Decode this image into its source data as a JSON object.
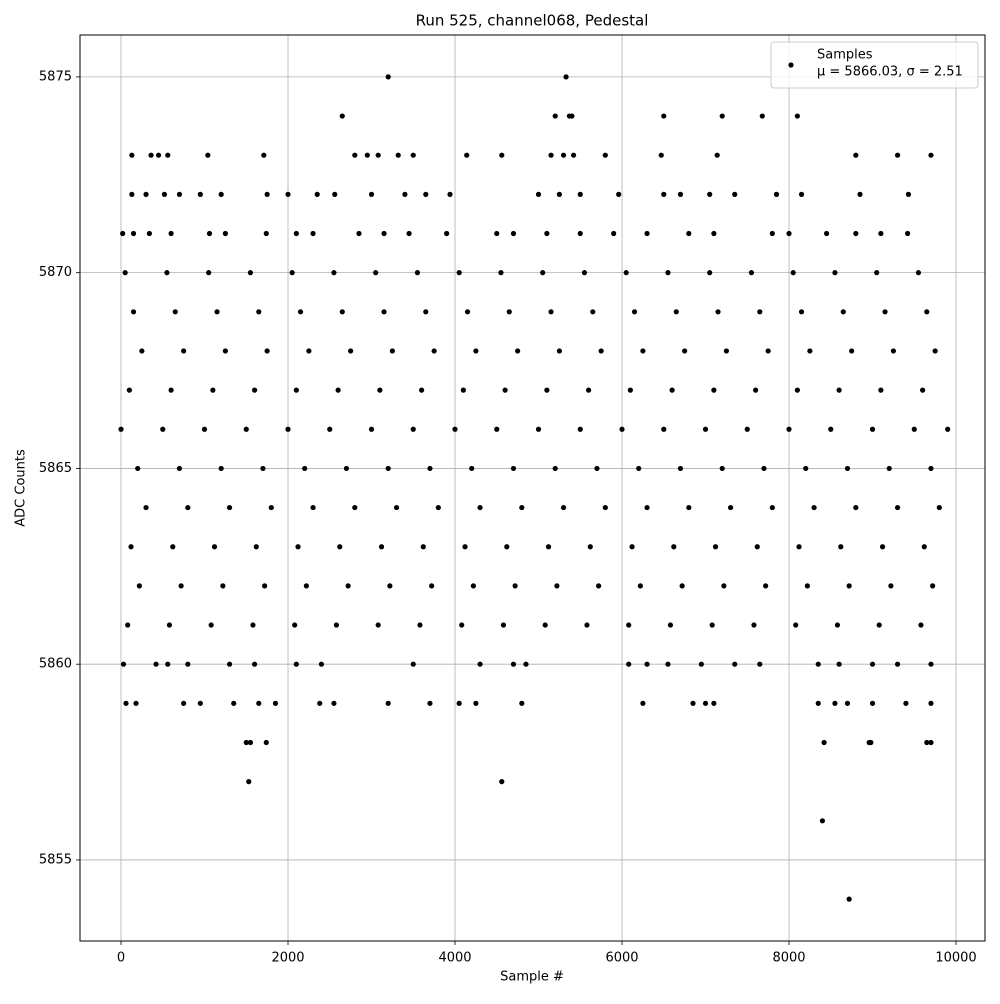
{
  "chart_data": {
    "type": "scatter",
    "title": "Run 525, channel068, Pedestal",
    "x_label": "Sample #",
    "y_label": "ADC Counts",
    "xlim": [
      -491,
      10347
    ],
    "ylim": [
      5852.93,
      5876.07
    ],
    "xticks": [
      0,
      2000,
      4000,
      6000,
      8000,
      10000
    ],
    "yticks": [
      5855,
      5860,
      5865,
      5870,
      5875
    ],
    "grid": true,
    "legend": "upper right",
    "legend_note": "μ = 5866.03, σ = 2.51",
    "series": [
      {
        "name": "Samples",
        "color": "#000000",
        "x": [
          3200,
          5330,
          2650,
          5200,
          5370,
          5400,
          6500,
          7200,
          7680,
          8100,
          130,
          360,
          450,
          560,
          1040,
          1710,
          2800,
          2950,
          3080,
          3320,
          3500,
          4140,
          4560,
          5150,
          5300,
          5420,
          5800,
          6470,
          7140,
          8800,
          9300,
          9700,
          130,
          300,
          520,
          700,
          950,
          1200,
          1750,
          2000,
          2350,
          2560,
          3000,
          3400,
          3650,
          3940,
          5000,
          5250,
          5500,
          5960,
          6500,
          6700,
          7050,
          7350,
          7850,
          8150,
          8850,
          9430,
          20,
          150,
          340,
          600,
          1060,
          1250,
          1740,
          2100,
          2300,
          2850,
          3150,
          3450,
          3900,
          4500,
          4700,
          5100,
          5500,
          5900,
          6300,
          6800,
          7100,
          7800,
          8000,
          8450,
          8800,
          9100,
          9420,
          50,
          550,
          1050,
          1550,
          2050,
          2550,
          3050,
          3550,
          4050,
          4550,
          5050,
          5550,
          6050,
          6550,
          7050,
          7550,
          8050,
          8550,
          9050,
          9550,
          150,
          650,
          1150,
          1650,
          2150,
          2650,
          3150,
          3650,
          4150,
          4650,
          5150,
          5650,
          6150,
          6650,
          7150,
          7650,
          8150,
          8650,
          9150,
          9650,
          250,
          750,
          1250,
          1750,
          2250,
          2750,
          3250,
          3750,
          4250,
          4750,
          5250,
          5750,
          6250,
          6750,
          7250,
          7750,
          8250,
          8750,
          9250,
          9750,
          100,
          600,
          1100,
          1600,
          2100,
          2600,
          3100,
          3600,
          4100,
          4600,
          5100,
          5600,
          6100,
          6600,
          7100,
          7600,
          8100,
          8600,
          9100,
          9600,
          0,
          500,
          1000,
          1500,
          2000,
          2500,
          3000,
          3500,
          4000,
          4500,
          5000,
          5500,
          6000,
          6500,
          7000,
          7500,
          8000,
          8500,
          9000,
          9500,
          9900,
          200,
          700,
          1200,
          1700,
          2200,
          2700,
          3200,
          3700,
          4200,
          4700,
          5200,
          5700,
          6200,
          6700,
          7200,
          7700,
          8200,
          8700,
          9200,
          9700,
          300,
          800,
          1300,
          1800,
          2300,
          2800,
          3300,
          3800,
          4300,
          4800,
          5300,
          5800,
          6300,
          6800,
          7300,
          7800,
          8300,
          8800,
          9300,
          9800,
          120,
          620,
          1120,
          1620,
          2120,
          2620,
          3120,
          3620,
          4120,
          4620,
          5120,
          5620,
          6120,
          6620,
          7120,
          7620,
          8120,
          8620,
          9120,
          9620,
          220,
          720,
          1220,
          1720,
          2220,
          2720,
          3220,
          3720,
          4220,
          4720,
          5220,
          5720,
          6220,
          6720,
          7220,
          7720,
          8220,
          8720,
          9220,
          9720,
          80,
          580,
          1080,
          1580,
          2080,
          2580,
          3080,
          3580,
          4080,
          4580,
          5080,
          5580,
          6080,
          6580,
          7080,
          7580,
          8080,
          8580,
          9080,
          9580,
          30,
          420,
          560,
          800,
          1300,
          1600,
          2100,
          2400,
          3500,
          4300,
          4700,
          4850,
          6080,
          6300,
          6550,
          6950,
          7350,
          7650,
          8350,
          8600,
          9000,
          9300,
          9700,
          60,
          180,
          750,
          950,
          1350,
          1650,
          1850,
          2380,
          2550,
          3200,
          3700,
          4050,
          4250,
          4800,
          6250,
          6850,
          7000,
          7100,
          8350,
          8550,
          8700,
          9000,
          9400,
          9700,
          1500,
          1550,
          1740,
          8420,
          8960,
          8980,
          9650,
          9700,
          1530,
          4560,
          8400,
          8720
        ],
        "values": [
          5875,
          5875,
          5874,
          5874,
          5874,
          5874,
          5874,
          5874,
          5874,
          5874,
          5873,
          5873,
          5873,
          5873,
          5873,
          5873,
          5873,
          5873,
          5873,
          5873,
          5873,
          5873,
          5873,
          5873,
          5873,
          5873,
          5873,
          5873,
          5873,
          5873,
          5873,
          5873,
          5872,
          5872,
          5872,
          5872,
          5872,
          5872,
          5872,
          5872,
          5872,
          5872,
          5872,
          5872,
          5872,
          5872,
          5872,
          5872,
          5872,
          5872,
          5872,
          5872,
          5872,
          5872,
          5872,
          5872,
          5872,
          5872,
          5871,
          5871,
          5871,
          5871,
          5871,
          5871,
          5871,
          5871,
          5871,
          5871,
          5871,
          5871,
          5871,
          5871,
          5871,
          5871,
          5871,
          5871,
          5871,
          5871,
          5871,
          5871,
          5871,
          5871,
          5871,
          5871,
          5871,
          5870,
          5870,
          5870,
          5870,
          5870,
          5870,
          5870,
          5870,
          5870,
          5870,
          5870,
          5870,
          5870,
          5870,
          5870,
          5870,
          5870,
          5870,
          5870,
          5870,
          5869,
          5869,
          5869,
          5869,
          5869,
          5869,
          5869,
          5869,
          5869,
          5869,
          5869,
          5869,
          5869,
          5869,
          5869,
          5869,
          5869,
          5869,
          5869,
          5869,
          5868,
          5868,
          5868,
          5868,
          5868,
          5868,
          5868,
          5868,
          5868,
          5868,
          5868,
          5868,
          5868,
          5868,
          5868,
          5868,
          5868,
          5868,
          5868,
          5868,
          5867,
          5867,
          5867,
          5867,
          5867,
          5867,
          5867,
          5867,
          5867,
          5867,
          5867,
          5867,
          5867,
          5867,
          5867,
          5867,
          5867,
          5867,
          5867,
          5867,
          5866,
          5866,
          5866,
          5866,
          5866,
          5866,
          5866,
          5866,
          5866,
          5866,
          5866,
          5866,
          5866,
          5866,
          5866,
          5866,
          5866,
          5866,
          5866,
          5866,
          5866,
          5865,
          5865,
          5865,
          5865,
          5865,
          5865,
          5865,
          5865,
          5865,
          5865,
          5865,
          5865,
          5865,
          5865,
          5865,
          5865,
          5865,
          5865,
          5865,
          5865,
          5864,
          5864,
          5864,
          5864,
          5864,
          5864,
          5864,
          5864,
          5864,
          5864,
          5864,
          5864,
          5864,
          5864,
          5864,
          5864,
          5864,
          5864,
          5864,
          5864,
          5863,
          5863,
          5863,
          5863,
          5863,
          5863,
          5863,
          5863,
          5863,
          5863,
          5863,
          5863,
          5863,
          5863,
          5863,
          5863,
          5863,
          5863,
          5863,
          5863,
          5862,
          5862,
          5862,
          5862,
          5862,
          5862,
          5862,
          5862,
          5862,
          5862,
          5862,
          5862,
          5862,
          5862,
          5862,
          5862,
          5862,
          5862,
          5862,
          5862,
          5861,
          5861,
          5861,
          5861,
          5861,
          5861,
          5861,
          5861,
          5861,
          5861,
          5861,
          5861,
          5861,
          5861,
          5861,
          5861,
          5861,
          5861,
          5861,
          5861,
          5860,
          5860,
          5860,
          5860,
          5860,
          5860,
          5860,
          5860,
          5860,
          5860,
          5860,
          5860,
          5860,
          5860,
          5860,
          5860,
          5860,
          5860,
          5860,
          5860,
          5860,
          5860,
          5860,
          5859,
          5859,
          5859,
          5859,
          5859,
          5859,
          5859,
          5859,
          5859,
          5859,
          5859,
          5859,
          5859,
          5859,
          5859,
          5859,
          5859,
          5859,
          5859,
          5859,
          5859,
          5859,
          5859,
          5859,
          5858,
          5858,
          5858,
          5858,
          5858,
          5858,
          5858,
          5858,
          5857,
          5857,
          5856,
          5854
        ]
      }
    ]
  }
}
